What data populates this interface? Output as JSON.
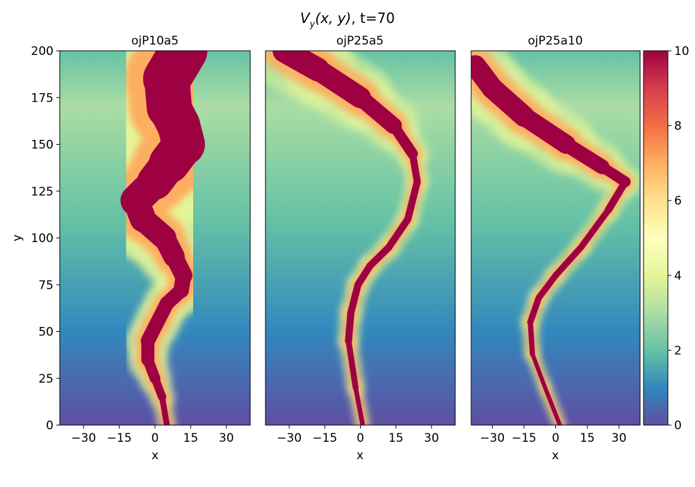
{
  "figure": {
    "title_math": "V",
    "title_sub": "y",
    "title_args": "(x, y)",
    "title_rest": ", t=70"
  },
  "chart_data": {
    "type": "heatmap",
    "quantity": "V_y(x, y)",
    "time_label": "t=70",
    "panels": [
      {
        "title": "ojP10a5",
        "xlabel": "x",
        "ylabel": "y",
        "xlim": [
          -40,
          40
        ],
        "ylim": [
          0,
          200
        ],
        "xticks": [
          -30,
          -15,
          0,
          15,
          30
        ],
        "yticks": [
          0,
          25,
          50,
          75,
          100,
          125,
          150,
          175,
          200
        ],
        "jet_spine": [
          [
            5,
            0
          ],
          [
            3,
            15
          ],
          [
            0,
            25
          ],
          [
            -3,
            35
          ],
          [
            -3,
            45
          ],
          [
            1,
            55
          ],
          [
            5,
            65
          ],
          [
            11,
            72
          ],
          [
            12,
            80
          ],
          [
            8,
            90
          ],
          [
            4,
            100
          ],
          [
            -5,
            110
          ],
          [
            -8,
            120
          ],
          [
            0,
            130
          ],
          [
            6,
            140
          ],
          [
            12,
            150
          ],
          [
            10,
            160
          ],
          [
            6,
            170
          ],
          [
            5,
            185
          ],
          [
            12,
            200
          ]
        ],
        "jet_width": [
          2,
          3,
          4,
          5,
          6,
          6,
          6,
          6,
          7,
          8,
          10,
          10,
          12,
          14,
          16,
          18,
          18,
          18,
          20,
          20
        ]
      },
      {
        "title": "ojP25a5",
        "xlabel": "x",
        "xlim": [
          -40,
          40
        ],
        "ylim": [
          0,
          200
        ],
        "xticks": [
          -30,
          -15,
          0,
          15,
          30
        ],
        "jet_spine": [
          [
            1,
            0
          ],
          [
            -2,
            20
          ],
          [
            -5,
            45
          ],
          [
            -4,
            60
          ],
          [
            -1,
            75
          ],
          [
            4,
            85
          ],
          [
            12,
            95
          ],
          [
            20,
            110
          ],
          [
            24,
            130
          ],
          [
            22,
            145
          ],
          [
            14,
            160
          ],
          [
            0,
            175
          ],
          [
            -18,
            190
          ],
          [
            -32,
            200
          ]
        ],
        "jet_width": [
          2,
          2,
          3,
          3,
          3,
          3,
          3,
          3,
          3,
          3,
          6,
          8,
          10,
          10
        ]
      },
      {
        "title": "ojP25a10",
        "xlabel": "x",
        "xlim": [
          -40,
          40
        ],
        "ylim": [
          0,
          200
        ],
        "xticks": [
          -30,
          -15,
          0,
          15,
          30
        ],
        "jet_spine": [
          [
            2,
            0
          ],
          [
            -5,
            20
          ],
          [
            -11,
            38
          ],
          [
            -12,
            55
          ],
          [
            -8,
            68
          ],
          [
            0,
            80
          ],
          [
            12,
            95
          ],
          [
            25,
            115
          ],
          [
            33,
            130
          ],
          [
            22,
            138
          ],
          [
            5,
            150
          ],
          [
            -15,
            165
          ],
          [
            -30,
            180
          ],
          [
            -38,
            192
          ]
        ],
        "jet_width": [
          2,
          2,
          2,
          3,
          3,
          3,
          3,
          3,
          4,
          6,
          8,
          10,
          10,
          10
        ]
      }
    ],
    "colorbar": {
      "min": 0,
      "max": 10,
      "ticks": [
        0,
        2,
        4,
        6,
        8,
        10
      ],
      "colormap": "Spectral_r",
      "colors": [
        "#5e4fa2",
        "#3288bd",
        "#66c2a5",
        "#abdda4",
        "#e6f598",
        "#ffffbf",
        "#fee08b",
        "#fdae61",
        "#f46d43",
        "#d53e4f",
        "#9e0142"
      ]
    }
  }
}
